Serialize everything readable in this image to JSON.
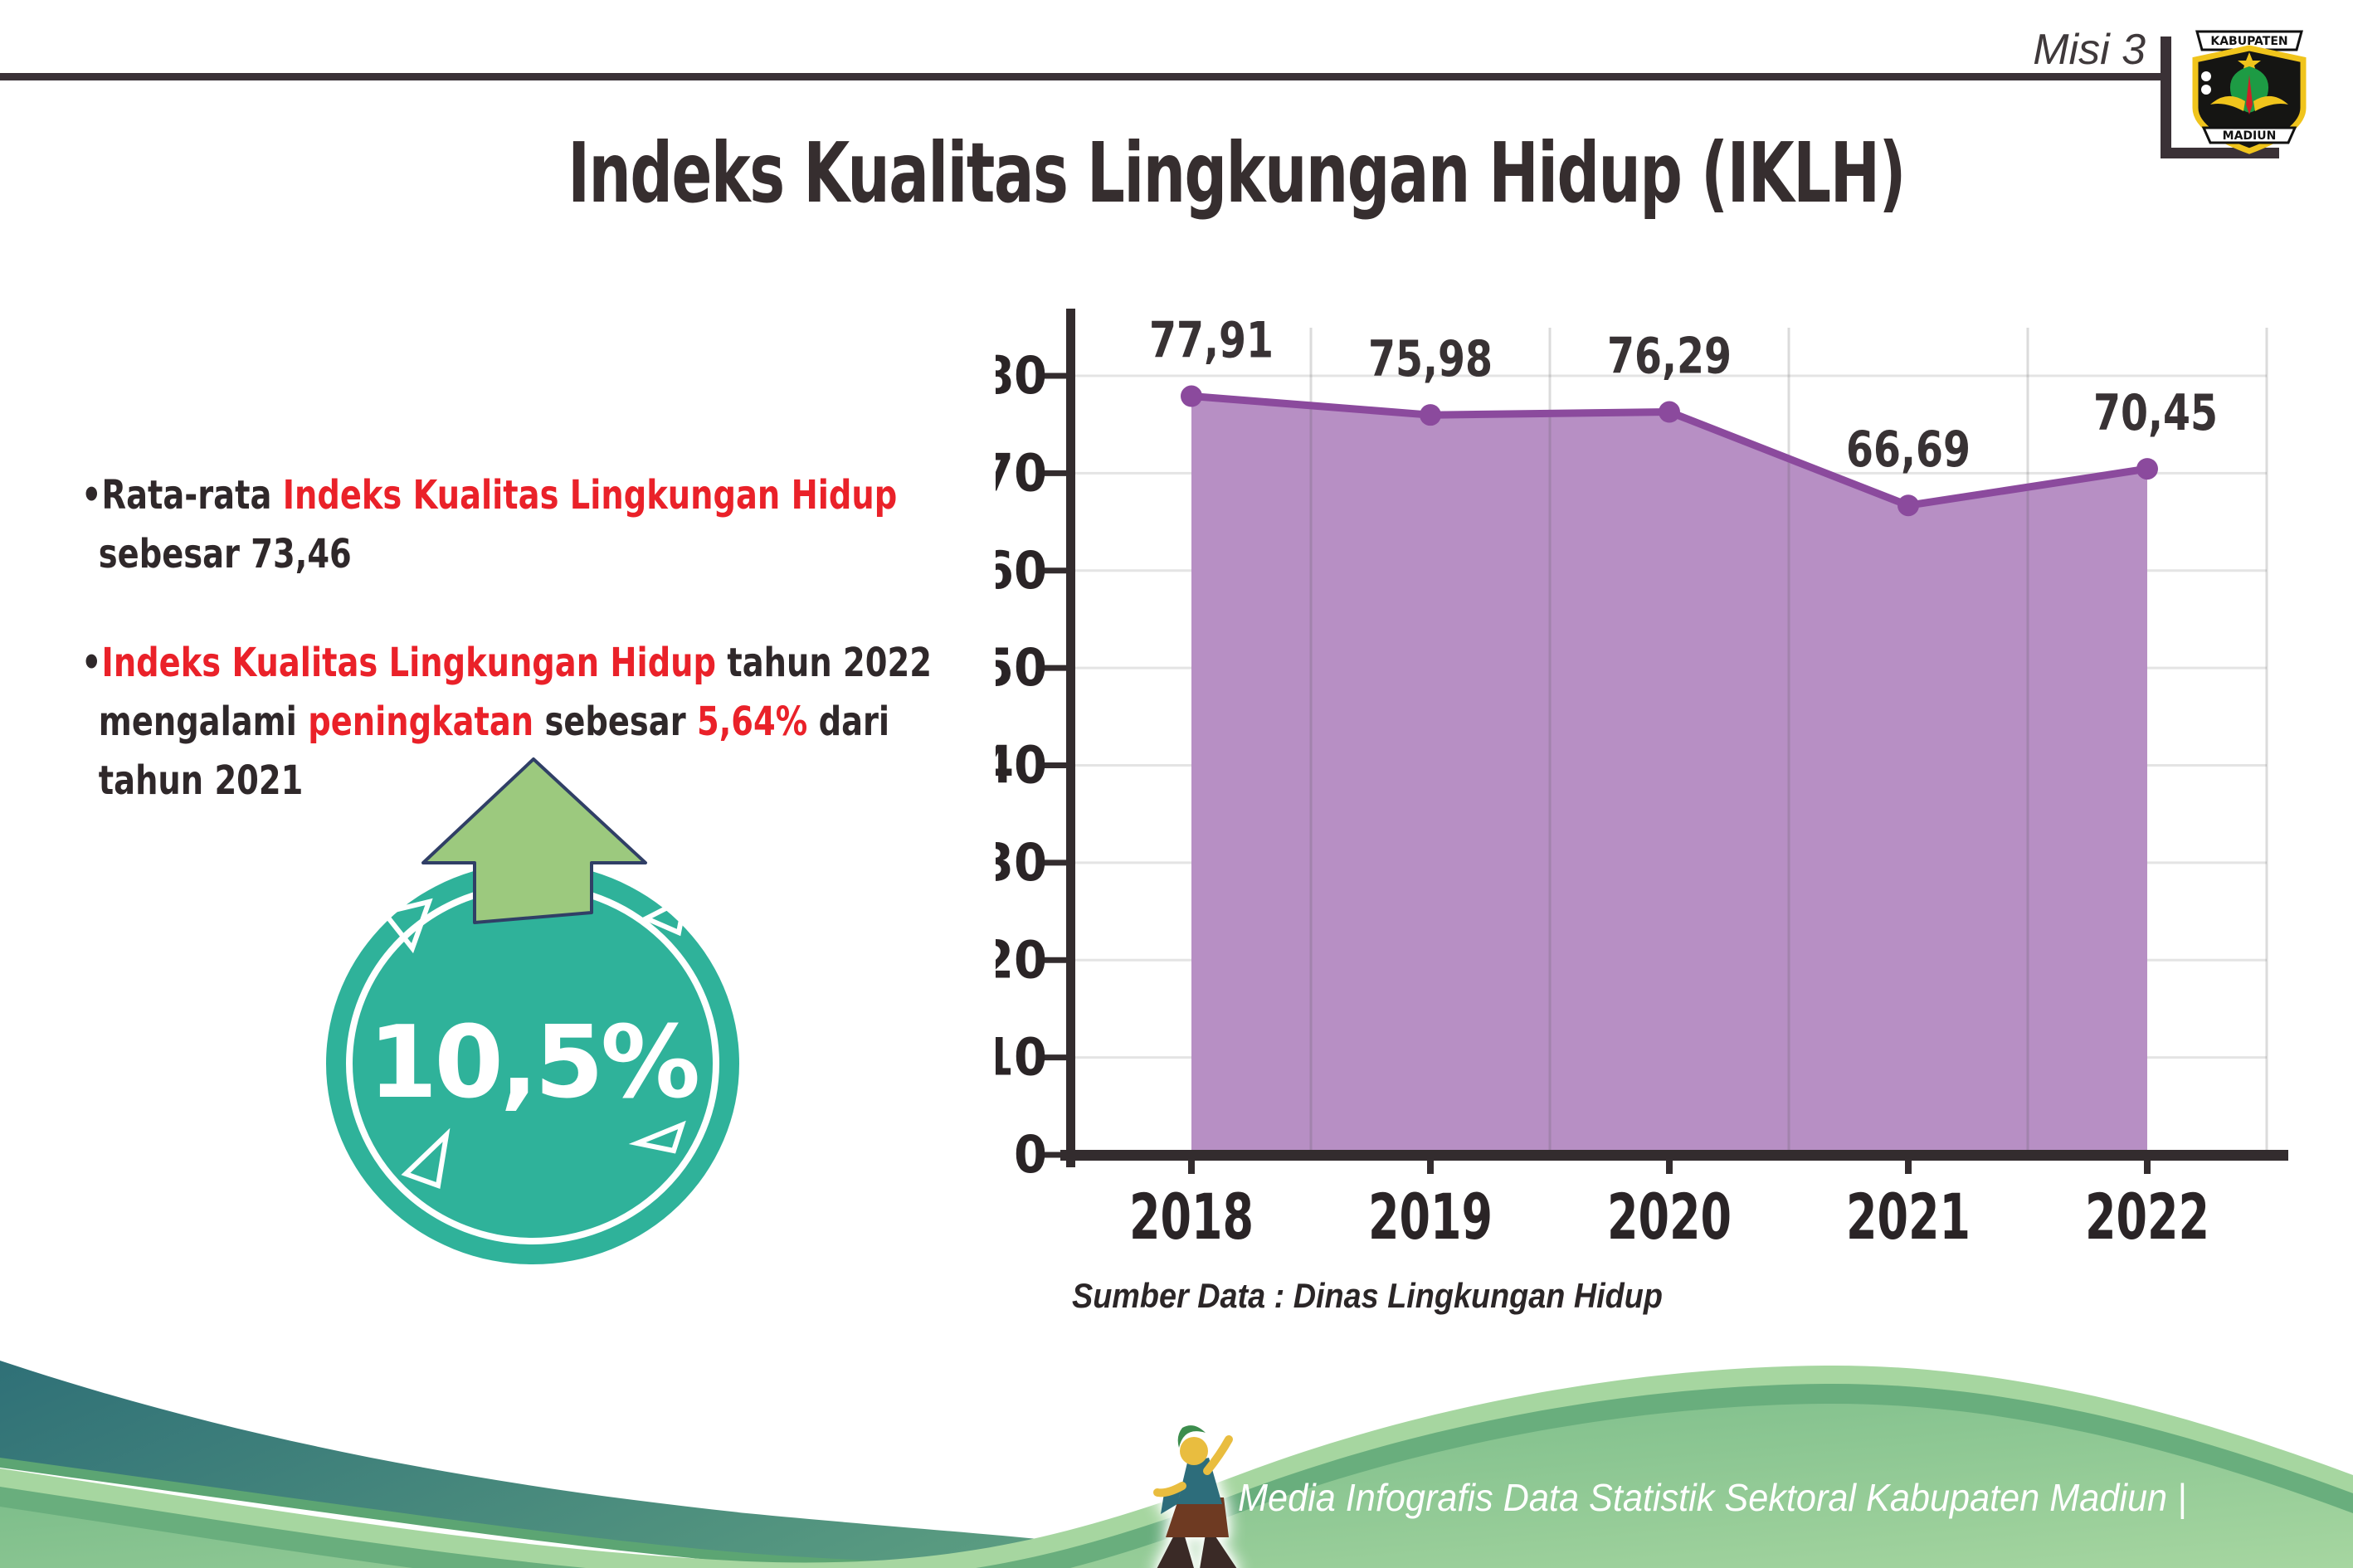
{
  "header": {
    "misi_label": "Misi 3",
    "title": "Indeks Kualitas Lingkungan Hidup (IKLH)",
    "logo": {
      "top_text": "KABUPATEN",
      "bottom_text": "MADIUN"
    }
  },
  "bullets": [
    {
      "lines": [
        [
          {
            "t": "•Rata-rata ",
            "c": "dark"
          },
          {
            "t": "Indeks Kualitas Lingkungan Hidup",
            "c": "red"
          }
        ],
        [
          {
            "t": "sebesar 73,46",
            "c": "dark"
          }
        ]
      ]
    },
    {
      "lines": [
        [
          {
            "t": "•",
            "c": "dark"
          },
          {
            "t": "Indeks Kualitas Lingkungan Hidup",
            "c": "red"
          },
          {
            "t": " tahun 2022",
            "c": "dark"
          }
        ],
        [
          {
            "t": "mengalami ",
            "c": "dark"
          },
          {
            "t": "peningkatan",
            "c": "red"
          },
          {
            "t": " sebesar ",
            "c": "dark"
          },
          {
            "t": "5,64%",
            "c": "red"
          },
          {
            "t": " dari",
            "c": "dark"
          }
        ],
        [
          {
            "t": "tahun 2021",
            "c": "dark"
          }
        ]
      ]
    }
  ],
  "badge": {
    "value": "10,5%"
  },
  "chart_data": {
    "type": "area",
    "categories": [
      "2018",
      "2019",
      "2020",
      "2021",
      "2022"
    ],
    "values": [
      77.91,
      75.98,
      76.29,
      66.69,
      70.45
    ],
    "labels": [
      "77,91",
      "75,98",
      "76,29",
      "66,69",
      "70,45"
    ],
    "title": "",
    "xlabel": "",
    "ylabel": "",
    "ylim": [
      0,
      80
    ],
    "ytick_step": 10,
    "grid": true,
    "legend": "none",
    "source": "Sumber Data : Dinas Lingkungan Hidup",
    "colors": {
      "area": "#b78fc4",
      "line": "#8b4a9d",
      "axis": "#332c2e",
      "data_label": "#383234",
      "tick_label": "#2a2426",
      "grid_h": "#e4e4e4",
      "grid_v": "rgba(90,90,90,0.22)"
    }
  },
  "footer": {
    "caption": "Media Infografis Data Statistik Sektoral Kabupaten Madiun |"
  },
  "colors": {
    "red": "#ea2129",
    "dark_text": "#2f282a",
    "title_text": "#362e2f",
    "rule": "#3a3136",
    "badge_teal": "#2fb29a",
    "arrow_green": "#9cc97e",
    "arrow_outline": "#303f66",
    "wave_teal_1": "#2f7077",
    "wave_teal_2": "#5a9c81",
    "wave_green_light": "#a6d6a0",
    "wave_green_dark": "#69ae7d",
    "wave_green_body_1": "#6fb583",
    "wave_green_body_2": "#abd9a3"
  }
}
